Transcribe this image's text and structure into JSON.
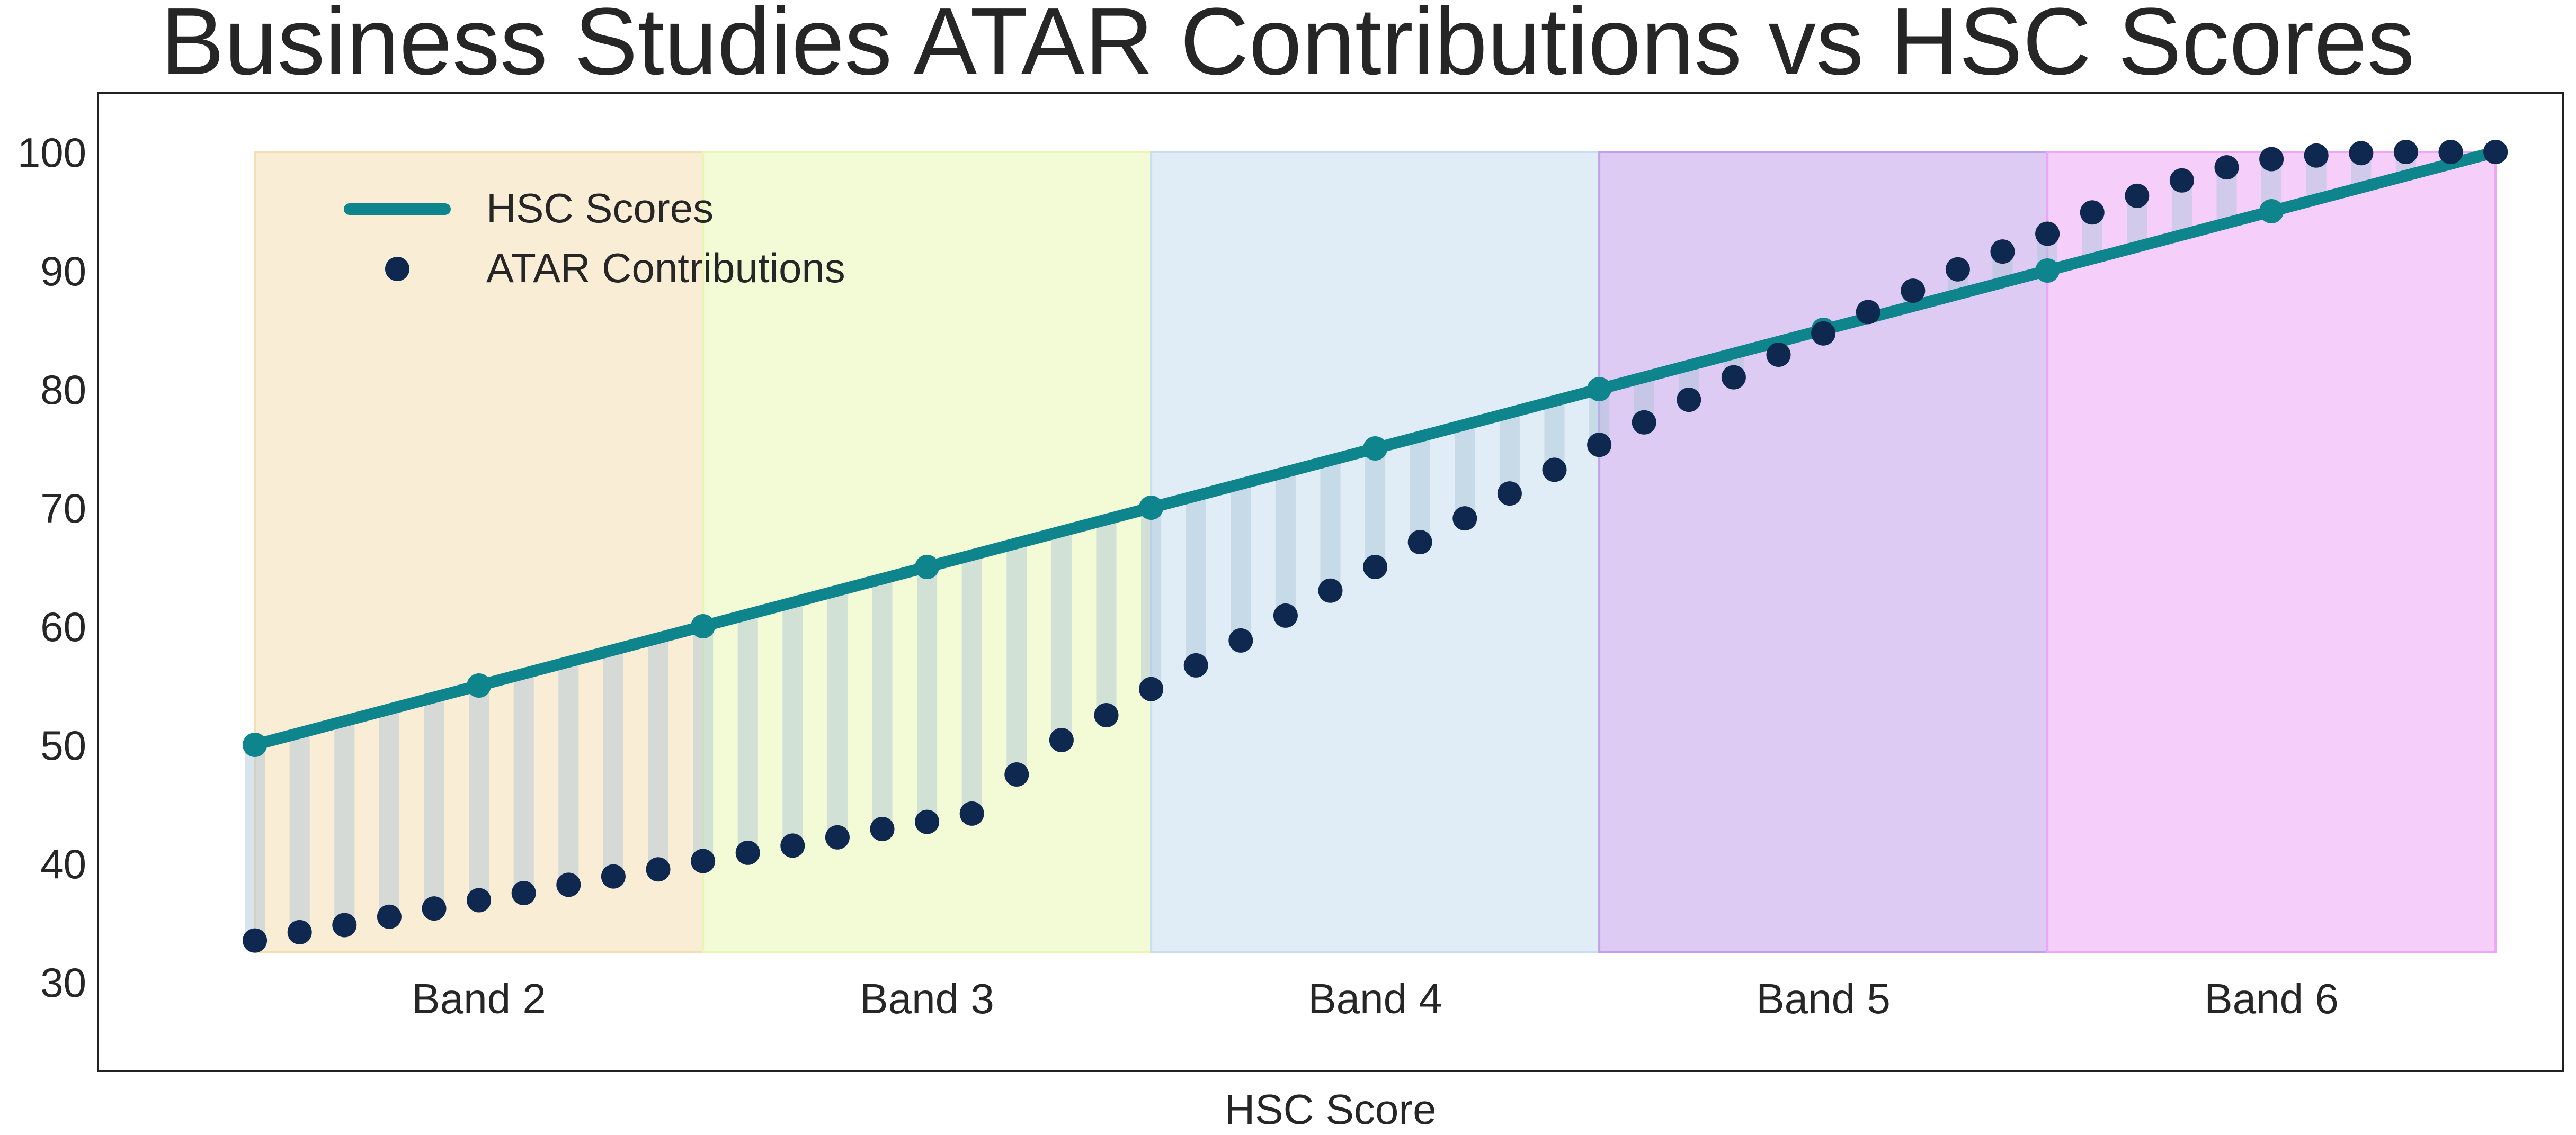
{
  "chart_data": {
    "type": "line",
    "title": "Business Studies ATAR Contributions vs HSC Scores",
    "xlabel": "HSC Score",
    "ylabel": "",
    "xlim": [
      46.5,
      101.5
    ],
    "ylim": [
      22.5,
      105
    ],
    "yticks": [
      30,
      40,
      50,
      60,
      70,
      80,
      90,
      100
    ],
    "grid": false,
    "legend_position": "top-left",
    "bands": [
      {
        "label": "Band 2",
        "from": 50,
        "to": 60,
        "color": "#f5deb3"
      },
      {
        "label": "Band 3",
        "from": 60,
        "to": 70,
        "color": "#eaf5b5"
      },
      {
        "label": "Band 4",
        "from": 70,
        "to": 80,
        "color": "#c8dfef"
      },
      {
        "label": "Band 5",
        "from": 80,
        "to": 90,
        "color": "#c3a1ea"
      },
      {
        "label": "Band 6",
        "from": 90,
        "to": 100,
        "color": "#eca8f6"
      }
    ],
    "bands_y_range": [
      32.5,
      100
    ],
    "series": [
      {
        "name": "HSC Scores",
        "kind": "line",
        "color": "#0e858c",
        "x": [
          50,
          55,
          60,
          65,
          70,
          75,
          80,
          85,
          90,
          95,
          100
        ],
        "y": [
          50,
          55,
          60,
          65,
          70,
          75,
          80,
          85,
          90,
          95,
          100
        ]
      },
      {
        "name": "ATAR Contributions",
        "kind": "scatter",
        "color": "#0f2850",
        "x": [
          50,
          51,
          52,
          53,
          54,
          55,
          56,
          57,
          58,
          59,
          60,
          61,
          62,
          63,
          64,
          65,
          66,
          67,
          68,
          69,
          70,
          71,
          72,
          73,
          74,
          75,
          76,
          77,
          78,
          79,
          80,
          81,
          82,
          83,
          84,
          85,
          86,
          87,
          88,
          89,
          90,
          91,
          92,
          93,
          94,
          95,
          96,
          97,
          98,
          99,
          100
        ],
        "y": [
          33.5,
          34.2,
          34.8,
          35.5,
          36.2,
          36.9,
          37.5,
          38.2,
          38.9,
          39.5,
          40.2,
          40.9,
          41.5,
          42.2,
          42.9,
          43.5,
          44.2,
          47.5,
          50.4,
          52.5,
          54.7,
          56.7,
          58.8,
          60.9,
          63.0,
          65.0,
          67.1,
          69.1,
          71.2,
          73.2,
          75.3,
          77.2,
          79.1,
          81.0,
          82.9,
          84.7,
          86.5,
          88.3,
          90.1,
          91.6,
          93.1,
          94.9,
          96.3,
          97.6,
          98.7,
          99.4,
          99.7,
          99.9,
          100.0,
          100.0,
          100.0
        ]
      }
    ]
  }
}
